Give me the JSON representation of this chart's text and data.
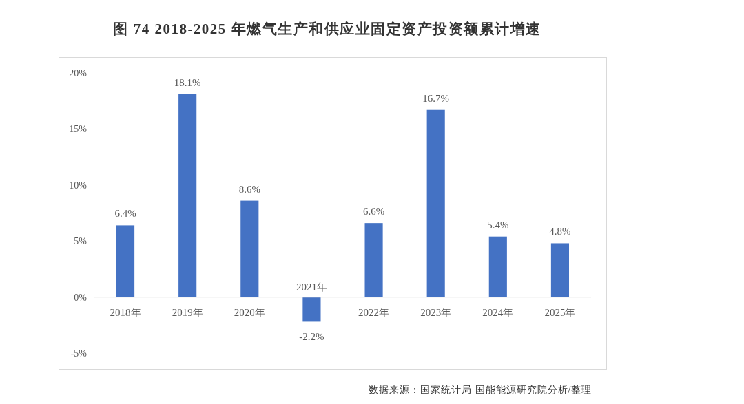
{
  "chart_data": {
    "type": "bar",
    "title": "图 74 2018-2025 年燃气生产和供应业固定资产投资额累计增速",
    "categories": [
      "2018年",
      "2019年",
      "2020年",
      "2021年",
      "2022年",
      "2023年",
      "2024年",
      "2025年"
    ],
    "values": [
      6.4,
      18.1,
      8.6,
      -2.2,
      6.6,
      16.7,
      5.4,
      4.8
    ],
    "value_labels": [
      "6.4%",
      "18.1%",
      "8.6%",
      "-2.2%",
      "6.6%",
      "16.7%",
      "5.4%",
      "4.8%"
    ],
    "color": "#4472c4",
    "ylim": [
      -5,
      20
    ],
    "yticks": [
      {
        "value": -5,
        "label": "-5%"
      },
      {
        "value": 0,
        "label": "0%"
      },
      {
        "value": 5,
        "label": "5%"
      },
      {
        "value": 10,
        "label": "10%"
      },
      {
        "value": 15,
        "label": "15%"
      },
      {
        "value": 20,
        "label": "20%"
      }
    ],
    "annotations": [
      "数据来源：国家统计局 国能能源研究院分析/整理"
    ]
  }
}
